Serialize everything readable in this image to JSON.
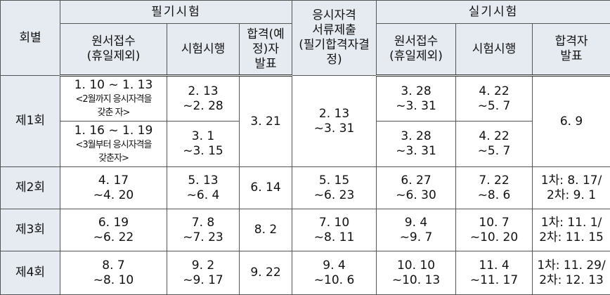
{
  "table": {
    "header": {
      "round": "회별",
      "written": {
        "title": "필기시험",
        "application": [
          "원서접수",
          "(휴일제외)"
        ],
        "exam": "시험시행",
        "result": [
          "합격(예",
          "정)자",
          "발표"
        ]
      },
      "documents": [
        "응시자격",
        "서류제출",
        "(필기합격자결",
        "정)"
      ],
      "practical": {
        "title": "실기시험",
        "application": [
          "원서접수",
          "(휴일제외)"
        ],
        "exam": "시험시행",
        "result": [
          "합격자",
          "발표"
        ]
      }
    },
    "rows": [
      {
        "round": "제1회",
        "sessions": [
          {
            "written_application": [
              "1. 10 ~ 1. 13",
              "<2월까지 응시자격을",
              "갖춘 자>"
            ],
            "written_exam": [
              "2. 13",
              "~2. 28"
            ],
            "practical_application": [
              "3. 28",
              "~3. 31"
            ],
            "practical_exam": [
              "4. 22",
              "~5. 7"
            ]
          },
          {
            "written_application": [
              "1. 16 ~ 1. 19",
              "<3월부터 응시자격을",
              "갖춘자>"
            ],
            "written_exam": [
              "3. 1",
              "~3. 15"
            ],
            "practical_application": [
              "3. 28",
              "~3. 31"
            ],
            "practical_exam": [
              "4. 22",
              "~5. 7"
            ]
          }
        ],
        "written_result": "3. 21",
        "documents": [
          "2. 13",
          "~3. 31"
        ],
        "practical_result": "6. 9"
      },
      {
        "round": "제2회",
        "written_application": [
          "4. 17",
          "~4. 20"
        ],
        "written_exam": [
          "5. 13",
          "~6. 4"
        ],
        "written_result": "6. 14",
        "documents": [
          "5. 15",
          "~6. 23"
        ],
        "practical_application": [
          "6. 27",
          "~6. 30"
        ],
        "practical_exam": [
          "7. 22",
          "~8. 6"
        ],
        "practical_result": [
          "1차: 8. 17/",
          "2차: 9. 1"
        ]
      },
      {
        "round": "제3회",
        "written_application": [
          "6. 19",
          "~6. 22"
        ],
        "written_exam": [
          "7. 8",
          "~7. 23"
        ],
        "written_result": "8. 2",
        "documents": [
          "7. 10",
          "~8. 11"
        ],
        "practical_application": [
          "9. 4",
          "~9. 7"
        ],
        "practical_exam": [
          "10. 7",
          "~10. 20"
        ],
        "practical_result": [
          "1차: 11. 1/",
          "2차: 11. 15"
        ]
      },
      {
        "round": "제4회",
        "written_application": [
          "8. 7",
          "~8. 10"
        ],
        "written_exam": [
          "9. 2",
          "~9. 17"
        ],
        "written_result": "9. 22",
        "documents": [
          "9. 4",
          "~10. 6"
        ],
        "practical_application": [
          "10. 10",
          "~10. 13"
        ],
        "practical_exam": [
          "11. 4",
          "~11. 17"
        ],
        "practical_result": [
          "1차: 11. 29/",
          "2차: 12. 13"
        ]
      }
    ]
  }
}
